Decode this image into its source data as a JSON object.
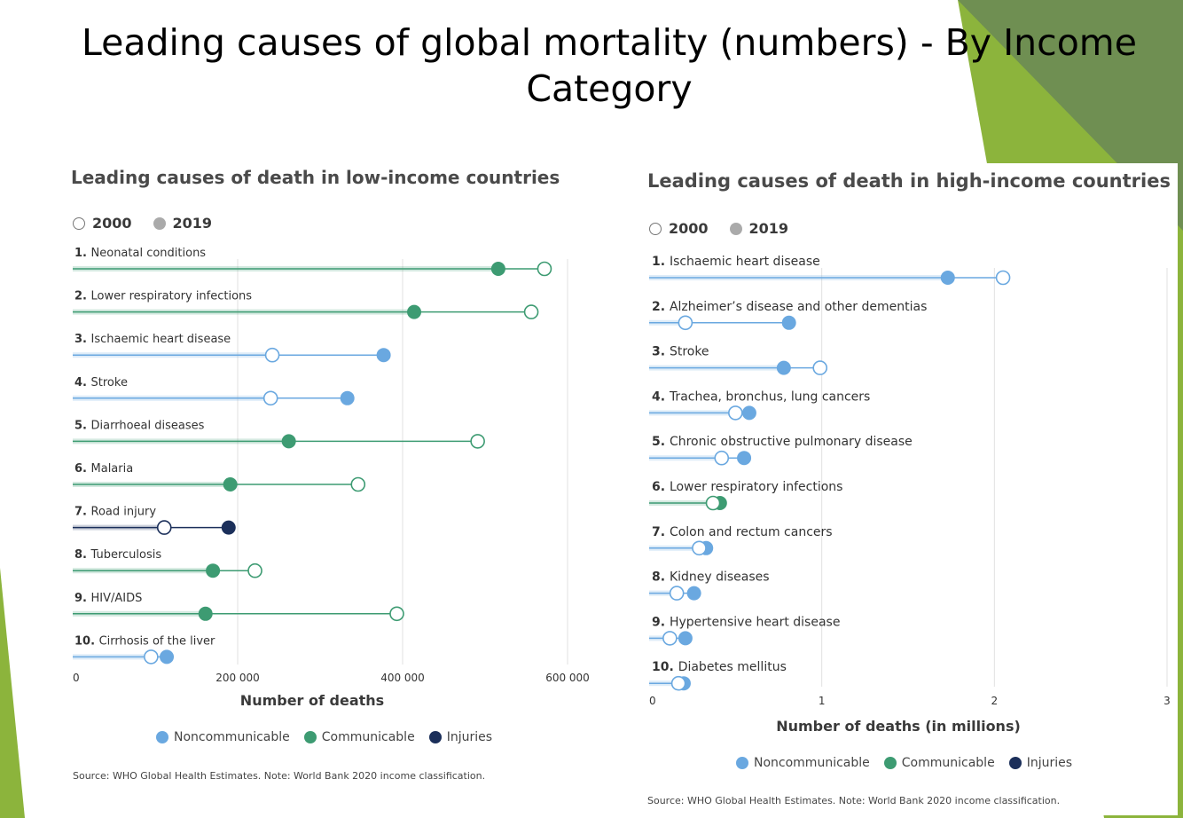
{
  "slide": {
    "title": "Leading causes of global mortality (numbers) - By Income Category",
    "accent_color": "#8cb43c"
  },
  "year_legend": {
    "open_label": "2000",
    "filled_label": "2019"
  },
  "category_colors": {
    "Noncommunicable": "#6aa8e0",
    "Communicable": "#3d9b72",
    "Injuries": "#1b2f5a"
  },
  "chart_data": [
    {
      "type": "dumbbell",
      "title": "Leading causes of death in low-income countries",
      "xlabel": "Number of deaths",
      "xlim": [
        0,
        600000
      ],
      "ticks": [
        0,
        200000,
        400000,
        600000
      ],
      "tick_labels": [
        "0",
        "200 000",
        "400 000",
        "600 000"
      ],
      "grid": true,
      "legend": [
        "Noncommunicable",
        "Communicable",
        "Injuries"
      ],
      "source": "Source: WHO Global Health Estimates. Note: World Bank 2020 income classification.",
      "rows": [
        {
          "rank": "1.",
          "label": "Neonatal conditions",
          "category": "Communicable",
          "y2000": 572000,
          "y2019": 516000
        },
        {
          "rank": "2.",
          "label": "Lower respiratory infections",
          "category": "Communicable",
          "y2000": 556000,
          "y2019": 414000
        },
        {
          "rank": "3.",
          "label": "Ischaemic heart disease",
          "category": "Noncommunicable",
          "y2000": 242000,
          "y2019": 377000
        },
        {
          "rank": "4.",
          "label": "Stroke",
          "category": "Noncommunicable",
          "y2000": 240000,
          "y2019": 333000
        },
        {
          "rank": "5.",
          "label": "Diarrhoeal diseases",
          "category": "Communicable",
          "y2000": 491000,
          "y2019": 262000
        },
        {
          "rank": "6.",
          "label": "Malaria",
          "category": "Communicable",
          "y2000": 346000,
          "y2019": 191000
        },
        {
          "rank": "7.",
          "label": "Road injury",
          "category": "Injuries",
          "y2000": 111000,
          "y2019": 189000
        },
        {
          "rank": "8.",
          "label": "Tuberculosis",
          "category": "Communicable",
          "y2000": 221000,
          "y2019": 170000
        },
        {
          "rank": "9.",
          "label": "HIV/AIDS",
          "category": "Communicable",
          "y2000": 393000,
          "y2019": 161000
        },
        {
          "rank": "10.",
          "label": "Cirrhosis of the liver",
          "category": "Noncommunicable",
          "y2000": 95000,
          "y2019": 114000
        }
      ]
    },
    {
      "type": "dumbbell",
      "title": "Leading causes of death in high-income countries",
      "xlabel": "Number of deaths (in millions)",
      "xlim": [
        0,
        3
      ],
      "ticks": [
        0,
        1,
        2,
        3
      ],
      "tick_labels": [
        "0",
        "1",
        "2",
        "3"
      ],
      "grid": true,
      "legend": [
        "Noncommunicable",
        "Communicable",
        "Injuries"
      ],
      "source": "Source: WHO Global Health Estimates. Note: World Bank 2020 income classification.",
      "rows": [
        {
          "rank": "1.",
          "label": "Ischaemic heart disease",
          "category": "Noncommunicable",
          "y2000": 2.05,
          "y2019": 1.73
        },
        {
          "rank": "2.",
          "label": "Alzheimer’s disease and other dementias",
          "category": "Noncommunicable",
          "y2000": 0.21,
          "y2019": 0.81
        },
        {
          "rank": "3.",
          "label": "Stroke",
          "category": "Noncommunicable",
          "y2000": 0.99,
          "y2019": 0.78
        },
        {
          "rank": "4.",
          "label": "Trachea, bronchus, lung cancers",
          "category": "Noncommunicable",
          "y2000": 0.5,
          "y2019": 0.58
        },
        {
          "rank": "5.",
          "label": "Chronic obstructive pulmonary disease",
          "category": "Noncommunicable",
          "y2000": 0.42,
          "y2019": 0.55
        },
        {
          "rank": "6.",
          "label": "Lower respiratory infections",
          "category": "Communicable",
          "y2000": 0.37,
          "y2019": 0.41
        },
        {
          "rank": "7.",
          "label": "Colon and rectum cancers",
          "category": "Noncommunicable",
          "y2000": 0.29,
          "y2019": 0.33
        },
        {
          "rank": "8.",
          "label": "Kidney diseases",
          "category": "Noncommunicable",
          "y2000": 0.16,
          "y2019": 0.26
        },
        {
          "rank": "9.",
          "label": "Hypertensive heart disease",
          "category": "Noncommunicable",
          "y2000": 0.12,
          "y2019": 0.21
        },
        {
          "rank": "10.",
          "label": "Diabetes mellitus",
          "category": "Noncommunicable",
          "y2000": 0.17,
          "y2019": 0.2
        }
      ]
    }
  ]
}
